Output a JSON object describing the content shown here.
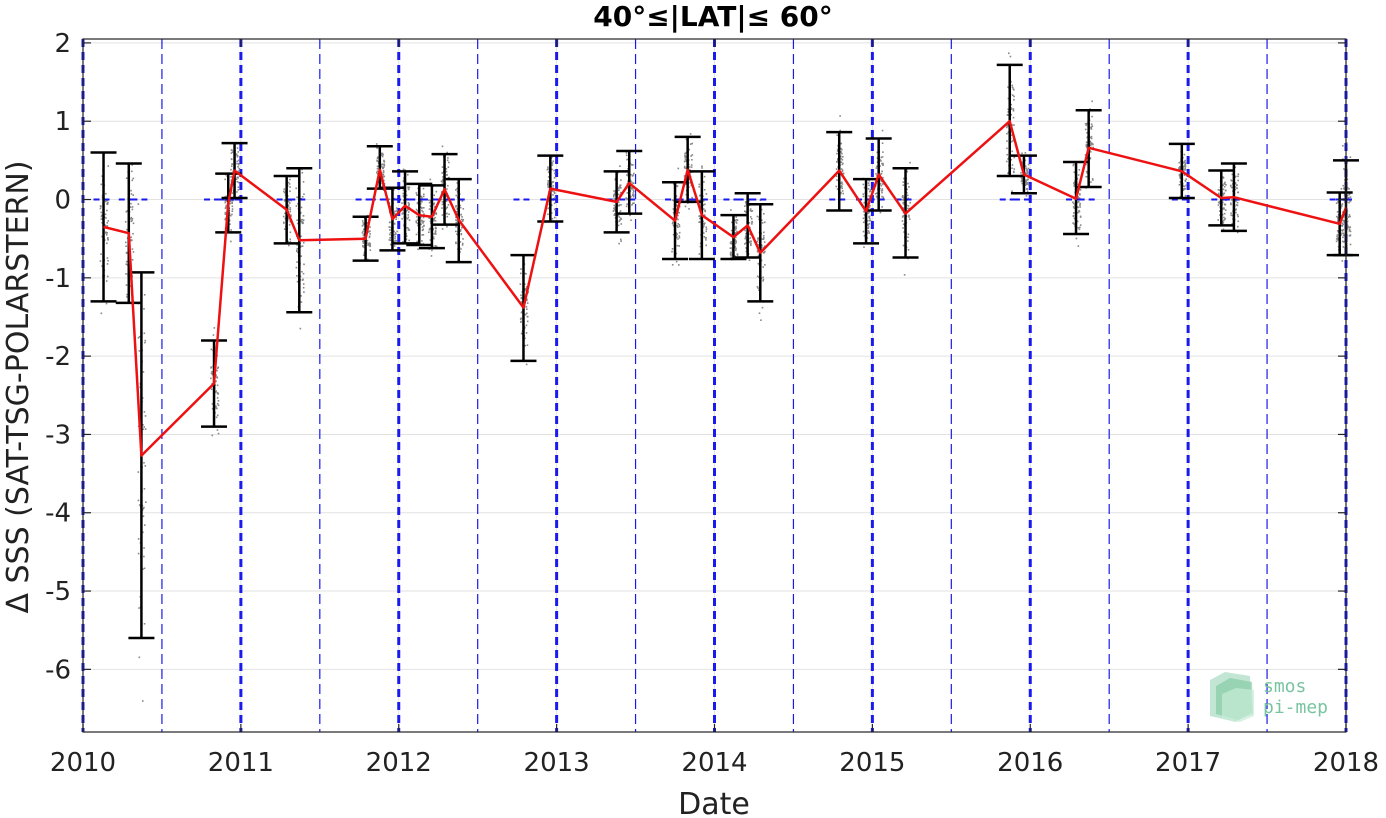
{
  "chart_data": {
    "type": "line",
    "title": "40°≤|LAT|≤ 60°",
    "xlabel": "Date",
    "ylabel": "Δ SSS (SAT-TSG-POLARSTERN)",
    "xlim": [
      2010,
      2018
    ],
    "ylim": [
      -6.8,
      2.05
    ],
    "x_ticks": [
      2010,
      2011,
      2012,
      2013,
      2014,
      2015,
      2016,
      2017,
      2018
    ],
    "x_tick_labels": [
      "2010",
      "2011",
      "2012",
      "2013",
      "2014",
      "2015",
      "2016",
      "2017",
      "2018"
    ],
    "y_ticks": [
      2,
      1,
      0,
      -1,
      -2,
      -3,
      -4,
      -5,
      -6
    ],
    "y_tick_labels": [
      "2",
      "1",
      "0",
      "-1",
      "-2",
      "-3",
      "-4",
      "-5",
      "-6"
    ],
    "grid": true,
    "colors": {
      "mean_line": "#ee1111",
      "error_bar": "#000000",
      "year_line": "#1a1aee",
      "scatter": "#888888"
    },
    "series": [
      {
        "style": "error-bars",
        "points": [
          {
            "x": 2010.13,
            "y": -0.35,
            "lo": -1.3,
            "hi": 0.6
          },
          {
            "x": 2010.29,
            "y": -0.43,
            "lo": -1.32,
            "hi": 0.46
          },
          {
            "x": 2010.37,
            "y": -3.27,
            "lo": -5.6,
            "hi": -0.93
          },
          {
            "x": 2010.83,
            "y": -2.35,
            "lo": -2.9,
            "hi": -1.8
          },
          {
            "x": 2010.92,
            "y": -0.05,
            "lo": -0.42,
            "hi": 0.33
          },
          {
            "x": 2010.96,
            "y": 0.37,
            "lo": 0.02,
            "hi": 0.72
          },
          {
            "x": 2011.29,
            "y": -0.13,
            "lo": -0.56,
            "hi": 0.3
          },
          {
            "x": 2011.37,
            "y": -0.52,
            "lo": -1.44,
            "hi": 0.4
          },
          {
            "x": 2011.79,
            "y": -0.5,
            "lo": -0.78,
            "hi": -0.22
          },
          {
            "x": 2011.88,
            "y": 0.38,
            "lo": 0.14,
            "hi": 0.68
          },
          {
            "x": 2011.96,
            "y": -0.25,
            "lo": -0.65,
            "hi": 0.15
          },
          {
            "x": 2012.04,
            "y": -0.08,
            "lo": -0.56,
            "hi": 0.36
          },
          {
            "x": 2012.13,
            "y": -0.2,
            "lo": -0.58,
            "hi": 0.2
          },
          {
            "x": 2012.21,
            "y": -0.22,
            "lo": -0.62,
            "hi": 0.18
          },
          {
            "x": 2012.29,
            "y": 0.13,
            "lo": -0.32,
            "hi": 0.58
          },
          {
            "x": 2012.38,
            "y": -0.26,
            "lo": -0.8,
            "hi": 0.26
          },
          {
            "x": 2012.79,
            "y": -1.38,
            "lo": -2.06,
            "hi": -0.71
          },
          {
            "x": 2012.96,
            "y": 0.14,
            "lo": -0.28,
            "hi": 0.56
          },
          {
            "x": 2013.38,
            "y": -0.03,
            "lo": -0.42,
            "hi": 0.36
          },
          {
            "x": 2013.46,
            "y": 0.21,
            "lo": -0.18,
            "hi": 0.62
          },
          {
            "x": 2013.75,
            "y": -0.27,
            "lo": -0.76,
            "hi": 0.22
          },
          {
            "x": 2013.83,
            "y": 0.38,
            "lo": -0.03,
            "hi": 0.8
          },
          {
            "x": 2013.92,
            "y": -0.2,
            "lo": -0.76,
            "hi": 0.36
          },
          {
            "x": 2014.12,
            "y": -0.48,
            "lo": -0.76,
            "hi": -0.2
          },
          {
            "x": 2014.21,
            "y": -0.33,
            "lo": -0.74,
            "hi": 0.08
          },
          {
            "x": 2014.29,
            "y": -0.68,
            "lo": -1.3,
            "hi": -0.06
          },
          {
            "x": 2014.79,
            "y": 0.37,
            "lo": -0.14,
            "hi": 0.86
          },
          {
            "x": 2014.96,
            "y": -0.15,
            "lo": -0.56,
            "hi": 0.26
          },
          {
            "x": 2015.04,
            "y": 0.32,
            "lo": -0.14,
            "hi": 0.78
          },
          {
            "x": 2015.21,
            "y": -0.18,
            "lo": -0.74,
            "hi": 0.4
          },
          {
            "x": 2015.87,
            "y": 1.0,
            "lo": 0.3,
            "hi": 1.72
          },
          {
            "x": 2015.96,
            "y": 0.32,
            "lo": 0.08,
            "hi": 0.56
          },
          {
            "x": 2016.29,
            "y": 0.01,
            "lo": -0.44,
            "hi": 0.48
          },
          {
            "x": 2016.37,
            "y": 0.66,
            "lo": 0.16,
            "hi": 1.14
          },
          {
            "x": 2016.96,
            "y": 0.36,
            "lo": 0.02,
            "hi": 0.71
          },
          {
            "x": 2017.21,
            "y": 0.02,
            "lo": -0.33,
            "hi": 0.37
          },
          {
            "x": 2017.29,
            "y": 0.03,
            "lo": -0.4,
            "hi": 0.46
          },
          {
            "x": 2017.96,
            "y": -0.31,
            "lo": -0.71,
            "hi": 0.09
          },
          {
            "x": 2018.0,
            "y": -0.1,
            "lo": -0.71,
            "hi": 0.5
          }
        ]
      }
    ]
  },
  "logo": {
    "line1": "smos",
    "line2": "pi-mep"
  }
}
